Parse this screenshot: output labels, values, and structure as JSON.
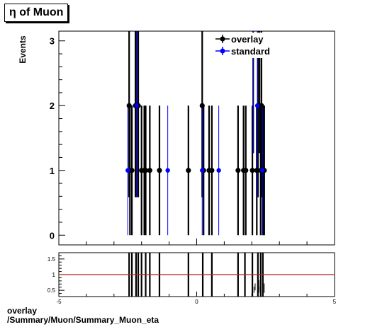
{
  "title": "η of Muon",
  "footer": {
    "line1": "overlay",
    "line2": "/Summary/Muon/Summary_Muon_eta"
  },
  "colors": {
    "overlay": "#000000",
    "standard": "#0000ff",
    "ratio_line": "#b22222"
  },
  "chart_data": [
    {
      "type": "scatter",
      "ylabel": "Events",
      "xlim": [
        -5,
        5
      ],
      "ylim": [
        -0.15,
        3.15
      ],
      "yticks": [
        0,
        1,
        2,
        3
      ],
      "legend": {
        "placement": "top-right",
        "entries": [
          "overlay",
          "standard"
        ]
      },
      "series": [
        {
          "name": "overlay",
          "points": [
            {
              "x": -2.45,
              "y": 2
            },
            {
              "x": -2.42,
              "y": 1
            },
            {
              "x": -2.35,
              "y": 1
            },
            {
              "x": -2.22,
              "y": 2
            },
            {
              "x": -2.18,
              "y": 2
            },
            {
              "x": -2.12,
              "y": 2
            },
            {
              "x": -2.0,
              "y": 1
            },
            {
              "x": -1.9,
              "y": 1
            },
            {
              "x": -1.85,
              "y": 1
            },
            {
              "x": -1.7,
              "y": 1
            },
            {
              "x": -1.35,
              "y": 1
            },
            {
              "x": -0.3,
              "y": 1
            },
            {
              "x": 0.2,
              "y": 2
            },
            {
              "x": 0.25,
              "y": 1
            },
            {
              "x": 0.45,
              "y": 1
            },
            {
              "x": 0.55,
              "y": 1
            },
            {
              "x": 1.5,
              "y": 1
            },
            {
              "x": 1.7,
              "y": 1
            },
            {
              "x": 1.78,
              "y": 1
            },
            {
              "x": 2.02,
              "y": 1
            },
            {
              "x": 2.05,
              "y": 3
            },
            {
              "x": 2.18,
              "y": 1
            },
            {
              "x": 2.22,
              "y": 2
            },
            {
              "x": 2.28,
              "y": 3
            },
            {
              "x": 2.32,
              "y": 1
            },
            {
              "x": 2.35,
              "y": 2
            },
            {
              "x": 2.4,
              "y": 1
            },
            {
              "x": 2.45,
              "y": 1
            }
          ]
        },
        {
          "name": "standard",
          "points": [
            {
              "x": -2.5,
              "y": 1
            },
            {
              "x": -2.18,
              "y": 2
            },
            {
              "x": -1.05,
              "y": 1
            },
            {
              "x": 0.2,
              "y": 1
            },
            {
              "x": 0.8,
              "y": 1
            },
            {
              "x": 2.05,
              "y": 3
            },
            {
              "x": 2.2,
              "y": 2
            },
            {
              "x": 2.38,
              "y": 1
            }
          ]
        }
      ]
    },
    {
      "type": "line",
      "xlim": [
        -5,
        5
      ],
      "ylim": [
        0.3,
        1.7
      ],
      "xticks": [
        -5,
        0,
        5
      ],
      "yticks": [
        0.5,
        1,
        1.5
      ],
      "ytick_labels": [
        "0.5",
        "1",
        "1.5"
      ],
      "reference_line": 1,
      "ratio_bars_x": [
        -2.45,
        -2.35,
        -2.2,
        -2.12,
        -2.0,
        -1.85,
        -1.7,
        -1.35,
        -0.3,
        0.22,
        0.55,
        1.5,
        1.75,
        2.02,
        2.22,
        2.32,
        2.4
      ],
      "ratio_small_x": [
        2.08,
        2.12,
        2.25,
        2.3,
        2.45
      ]
    }
  ]
}
